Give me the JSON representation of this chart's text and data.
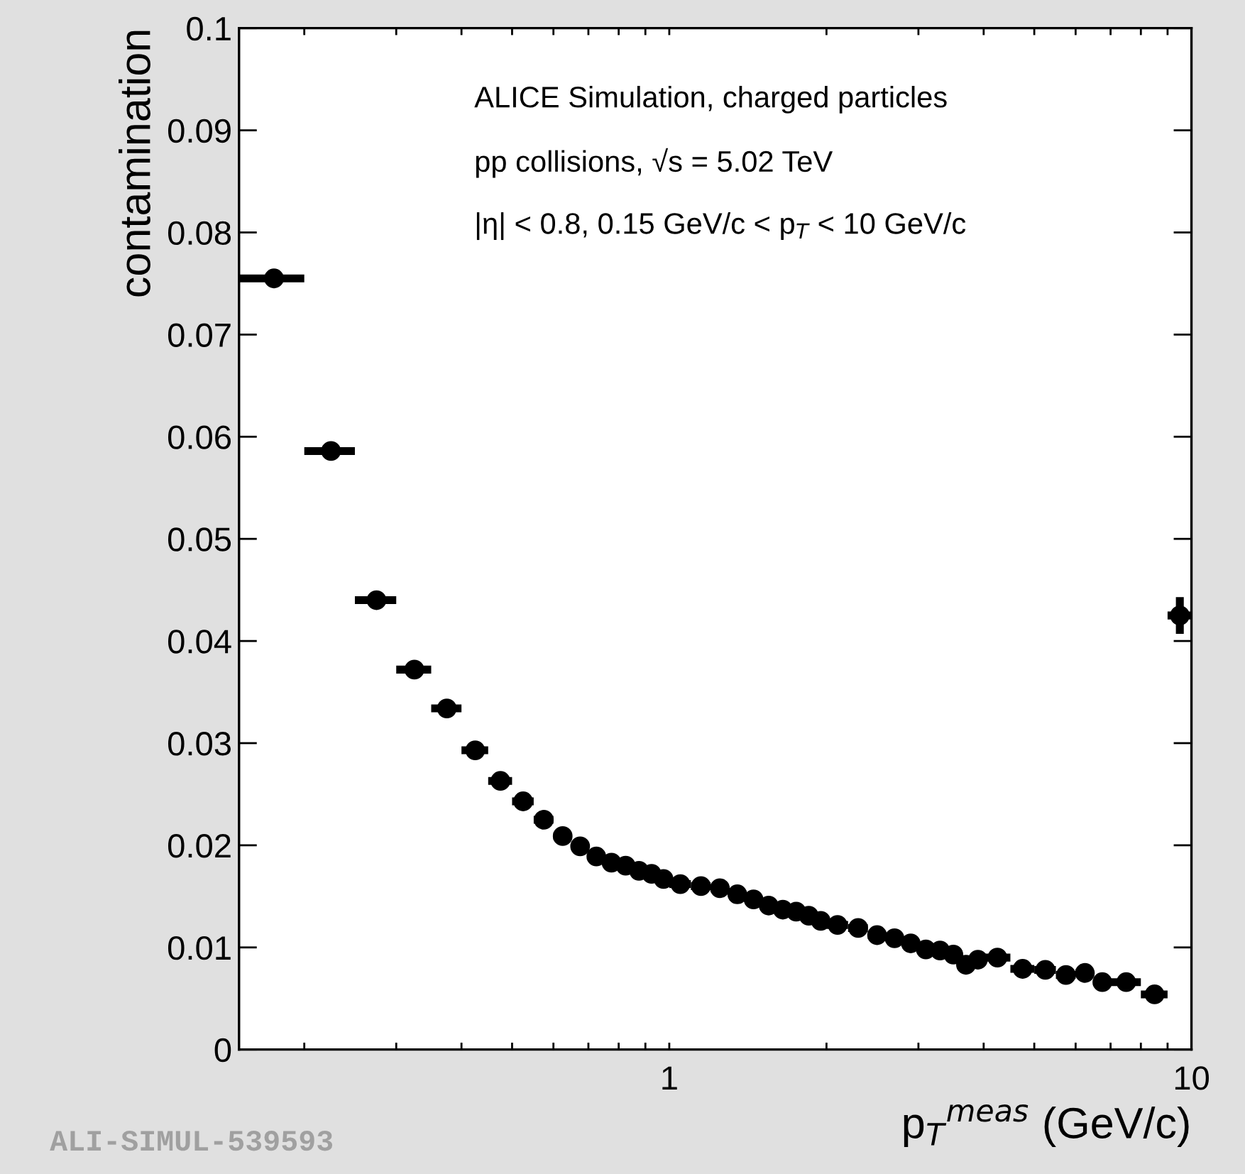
{
  "chart_data": {
    "type": "scatter",
    "xlabel": "p$_{T}$$^{meas}$ (GeV/c)",
    "ylabel": "contamination",
    "annotations": [
      "ALICE Simulation, charged particles",
      "pp collisions, √s = 5.02 TeV",
      "|η| < 0.8, 0.15 GeV/c < p$_{T}$ < 10 GeV/c",
      "ALI-SIMUL-539593"
    ],
    "x": [
      0.175,
      0.225,
      0.275,
      0.325,
      0.375,
      0.425,
      0.475,
      0.525,
      0.575,
      0.625,
      0.675,
      0.725,
      0.775,
      0.825,
      0.875,
      0.925,
      0.975,
      1.05,
      1.15,
      1.25,
      1.35,
      1.45,
      1.55,
      1.65,
      1.75,
      1.85,
      1.95,
      2.1,
      2.3,
      2.5,
      2.7,
      2.9,
      3.1,
      3.3,
      3.5,
      3.7,
      3.9,
      4.25,
      4.75,
      5.25,
      5.75,
      6.25,
      6.75,
      7.5,
      8.5,
      9.5
    ],
    "values": [
      0.0755,
      0.0586,
      0.044,
      0.0372,
      0.0334,
      0.0293,
      0.0263,
      0.0243,
      0.0225,
      0.0209,
      0.0199,
      0.0189,
      0.0183,
      0.018,
      0.0175,
      0.0172,
      0.0167,
      0.0162,
      0.016,
      0.0158,
      0.0152,
      0.0147,
      0.0141,
      0.0137,
      0.0135,
      0.0131,
      0.0126,
      0.0122,
      0.0119,
      0.0112,
      0.0109,
      0.0104,
      0.0098,
      0.0097,
      0.0093,
      0.0083,
      0.0088,
      0.009,
      0.0079,
      0.0078,
      0.0073,
      0.0075,
      0.0066,
      0.0066,
      0.0054,
      0.0425
    ],
    "xerrors": [
      0.025,
      0.025,
      0.025,
      0.025,
      0.025,
      0.025,
      0.025,
      0.025,
      0.025,
      0.025,
      0.025,
      0.025,
      0.025,
      0.025,
      0.025,
      0.025,
      0.025,
      0.05,
      0.05,
      0.05,
      0.05,
      0.05,
      0.05,
      0.05,
      0.05,
      0.05,
      0.05,
      0.1,
      0.1,
      0.1,
      0.1,
      0.1,
      0.1,
      0.1,
      0.1,
      0.1,
      0.1,
      0.25,
      0.25,
      0.25,
      0.25,
      0.25,
      0.25,
      0.5,
      0.5,
      0.5
    ],
    "errors": [
      null,
      null,
      null,
      null,
      null,
      null,
      null,
      null,
      null,
      null,
      null,
      null,
      null,
      null,
      null,
      null,
      null,
      null,
      null,
      null,
      null,
      null,
      null,
      null,
      null,
      null,
      null,
      null,
      null,
      null,
      null,
      null,
      null,
      null,
      null,
      null,
      null,
      null,
      null,
      null,
      null,
      null,
      null,
      null,
      null,
      0.0018
    ],
    "color": "#000000",
    "marker": "circle",
    "log": "x",
    "xlim": [
      0.15,
      10
    ],
    "xticks": [
      {
        "value": 0.2,
        "label": null
      },
      {
        "value": 0.3,
        "label": null
      },
      {
        "value": 0.4,
        "label": null
      },
      {
        "value": 0.5,
        "label": null
      },
      {
        "value": 0.6,
        "label": null
      },
      {
        "value": 0.7,
        "label": null
      },
      {
        "value": 0.8,
        "label": null
      },
      {
        "value": 0.9,
        "label": null
      },
      1,
      {
        "value": 2,
        "label": null
      },
      {
        "value": 3,
        "label": null
      },
      {
        "value": 4,
        "label": null
      },
      {
        "value": 5,
        "label": null
      },
      {
        "value": 6,
        "label": null
      },
      {
        "value": 7,
        "label": null
      },
      {
        "value": 8,
        "label": null
      },
      {
        "value": 9,
        "label": null
      },
      10
    ],
    "ylim": [
      0,
      0.1
    ],
    "yticks": [
      0,
      0.01,
      0.02,
      0.03,
      0.04,
      0.05,
      0.06,
      0.07,
      0.08,
      0.09,
      0.1
    ],
    "grid": false,
    "legend": false
  }
}
